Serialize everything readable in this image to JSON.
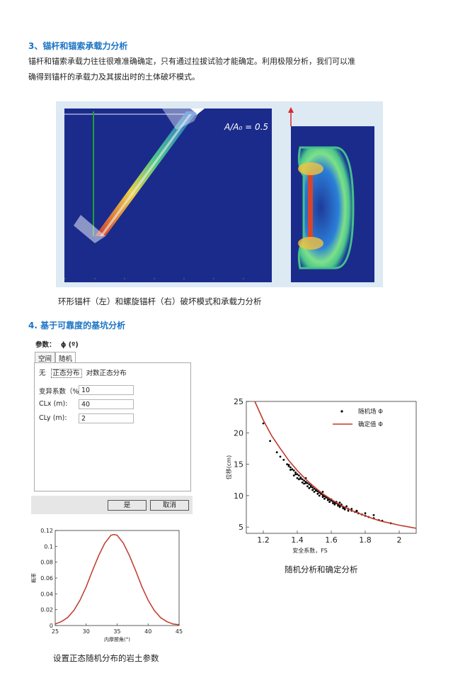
{
  "section3": {
    "heading": "3、锚杆和锚索承载力分析",
    "para_line1": "锚杆和锚索承载力往往很难准确确定，只有通过拉拔试验才能确定。利用极限分析，我们可以准",
    "para_line2": "确得到锚杆的承载力及其拔出时的土体破坏模式。",
    "fem_label": "A/A₀ = 0.5",
    "caption": "环形锚杆（左）和螺旋锚杆（右）破坏模式和承载力分析"
  },
  "section4": {
    "heading": "4. 基于可靠度的基坑分析"
  },
  "dialog": {
    "param_label": "参数：",
    "param_value": "ϕ (º)",
    "tabs": [
      "空间",
      "随机"
    ],
    "dist_options": [
      "无",
      "正态分布",
      "对数正态分布"
    ],
    "fields": [
      {
        "label": "变异系数（%",
        "value": "10"
      },
      {
        "label": "CLx (m):",
        "value": "40"
      },
      {
        "label": "CLy (m):",
        "value": "2"
      }
    ],
    "ok_label": "是",
    "cancel_label": "取消"
  },
  "pdf_chart": {
    "caption": "设置正态随机分布的岩土参数",
    "chart_data": {
      "type": "line",
      "xlabel": "内摩擦角(°)",
      "ylabel": "概率",
      "xlim": [
        25,
        45
      ],
      "ylim": [
        0,
        0.12
      ],
      "xticks": [
        25,
        30,
        35,
        40,
        45
      ],
      "yticks": [
        0,
        0.02,
        0.04,
        0.06,
        0.08,
        0.1,
        0.12
      ],
      "series": [
        {
          "color": "#c0392b",
          "x": [
            25,
            26,
            27,
            28,
            29,
            30,
            31,
            32,
            33,
            34,
            34.5,
            35,
            36,
            37,
            38,
            39,
            40,
            41,
            42,
            43,
            44,
            45
          ],
          "y": [
            0.002,
            0.005,
            0.01,
            0.019,
            0.032,
            0.049,
            0.069,
            0.088,
            0.104,
            0.114,
            0.115,
            0.114,
            0.104,
            0.088,
            0.069,
            0.049,
            0.032,
            0.019,
            0.01,
            0.005,
            0.002,
            0.001
          ]
        }
      ]
    }
  },
  "scatter_chart": {
    "caption": "随机分析和确定分析",
    "chart_data": {
      "type": "scatter",
      "xlabel": "安全系数，FS",
      "ylabel": "位移(cm)",
      "xlim": [
        1.1,
        2.1
      ],
      "ylim": [
        4,
        25
      ],
      "xticks": [
        1.2,
        1.4,
        1.6,
        1.8,
        2
      ],
      "yticks": [
        5,
        10,
        15,
        20,
        25
      ],
      "legend": [
        {
          "name": "随机场 Φ",
          "marker": "dot",
          "color": "#000000"
        },
        {
          "name": "确定值 Φ",
          "marker": "line",
          "color": "#c0392b"
        }
      ],
      "series": [
        {
          "name": "确定值 Φ",
          "color": "#c0392b",
          "x": [
            1.15,
            1.2,
            1.25,
            1.3,
            1.35,
            1.4,
            1.45,
            1.5,
            1.55,
            1.6,
            1.65,
            1.7,
            1.75,
            1.8,
            1.85,
            1.9,
            1.95,
            2.0,
            2.05,
            2.1
          ],
          "y": [
            25,
            22.0,
            19.5,
            17.5,
            15.6,
            14.0,
            12.6,
            11.4,
            10.3,
            9.4,
            8.6,
            7.9,
            7.3,
            6.8,
            6.3,
            5.9,
            5.6,
            5.3,
            5.05,
            4.8
          ]
        },
        {
          "name": "随机场 Φ",
          "color": "#000000",
          "x": [
            1.2,
            1.24,
            1.28,
            1.3,
            1.32,
            1.34,
            1.35,
            1.36,
            1.37,
            1.38,
            1.39,
            1.4,
            1.41,
            1.42,
            1.43,
            1.44,
            1.45,
            1.46,
            1.47,
            1.48,
            1.49,
            1.5,
            1.51,
            1.52,
            1.53,
            1.54,
            1.55,
            1.56,
            1.57,
            1.58,
            1.59,
            1.6,
            1.61,
            1.62,
            1.63,
            1.64,
            1.65,
            1.66,
            1.67,
            1.68,
            1.7,
            1.72,
            1.74,
            1.76,
            1.78,
            1.8,
            1.82,
            1.85,
            1.88,
            1.9,
            1.95,
            1.38,
            1.41,
            1.44,
            1.47,
            1.5,
            1.53,
            1.56,
            1.59,
            1.62,
            1.65,
            1.68,
            1.4,
            1.43,
            1.46,
            1.49,
            1.52,
            1.55,
            1.58,
            1.61,
            1.64,
            1.67,
            1.7,
            1.36,
            1.39,
            1.42,
            1.45,
            1.48,
            1.51,
            1.54,
            1.57,
            1.6,
            1.63,
            1.66,
            1.69,
            1.72,
            1.75,
            1.35,
            1.45,
            1.55,
            1.65,
            1.75,
            1.8,
            1.85
          ],
          "y": [
            21.5,
            18.7,
            16.9,
            16.2,
            15.7,
            15.0,
            14.7,
            14.5,
            14.2,
            14.0,
            13.7,
            13.4,
            13.2,
            12.9,
            12.6,
            12.4,
            12.2,
            12.0,
            11.8,
            11.6,
            11.3,
            11.1,
            10.9,
            10.7,
            10.5,
            10.3,
            10.1,
            9.9,
            9.7,
            9.6,
            9.4,
            9.2,
            9.1,
            8.9,
            8.8,
            8.6,
            8.5,
            8.4,
            8.2,
            8.1,
            7.9,
            7.6,
            7.4,
            7.2,
            7.0,
            6.8,
            6.6,
            6.4,
            6.1,
            6.0,
            5.6,
            13.2,
            12.6,
            11.9,
            11.2,
            10.6,
            10.0,
            9.5,
            9.0,
            8.6,
            8.2,
            7.8,
            12.8,
            12.1,
            11.5,
            10.9,
            10.3,
            9.8,
            9.3,
            8.8,
            8.4,
            8.0,
            7.6,
            14.1,
            13.4,
            12.7,
            12.0,
            11.4,
            10.8,
            10.3,
            9.8,
            9.4,
            9.0,
            8.6,
            8.3,
            7.9,
            7.5,
            14.9,
            12.8,
            10.6,
            8.9,
            7.6,
            7.2,
            6.9
          ]
        }
      ]
    }
  }
}
